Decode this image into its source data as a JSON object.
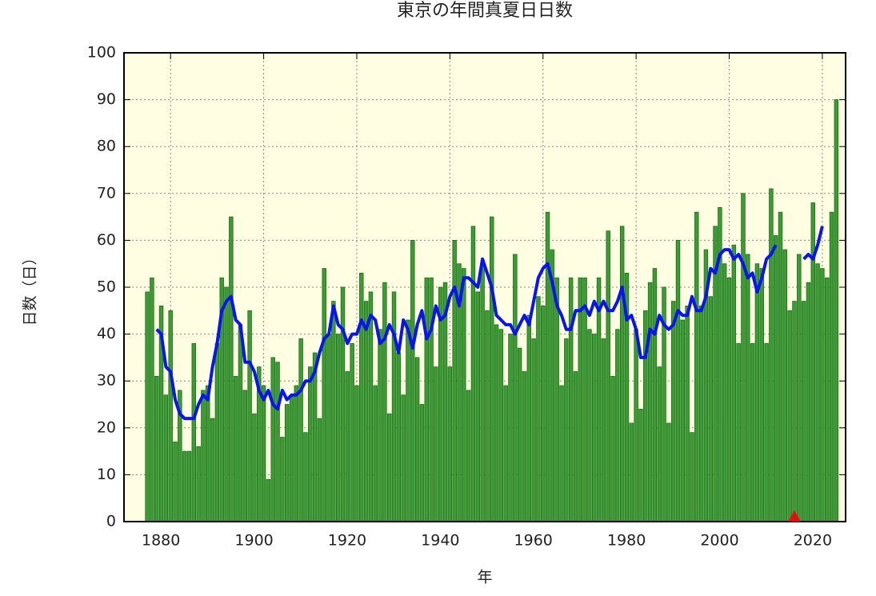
{
  "chart_data": {
    "type": "bar",
    "title": "東京の年間真夏日日数",
    "xlabel": "年",
    "ylabel": "日数（日）",
    "x": [
      1875,
      1876,
      1877,
      1878,
      1879,
      1880,
      1881,
      1882,
      1883,
      1884,
      1885,
      1886,
      1887,
      1888,
      1889,
      1890,
      1891,
      1892,
      1893,
      1894,
      1895,
      1896,
      1897,
      1898,
      1899,
      1900,
      1901,
      1902,
      1903,
      1904,
      1905,
      1906,
      1907,
      1908,
      1909,
      1910,
      1911,
      1912,
      1913,
      1914,
      1915,
      1916,
      1917,
      1918,
      1919,
      1920,
      1921,
      1922,
      1923,
      1924,
      1925,
      1926,
      1927,
      1928,
      1929,
      1930,
      1931,
      1932,
      1933,
      1934,
      1935,
      1936,
      1937,
      1938,
      1939,
      1940,
      1941,
      1942,
      1943,
      1944,
      1945,
      1946,
      1947,
      1948,
      1949,
      1950,
      1951,
      1952,
      1953,
      1954,
      1955,
      1956,
      1957,
      1958,
      1959,
      1960,
      1961,
      1962,
      1963,
      1964,
      1965,
      1966,
      1967,
      1968,
      1969,
      1970,
      1971,
      1972,
      1973,
      1974,
      1975,
      1976,
      1977,
      1978,
      1979,
      1980,
      1981,
      1982,
      1983,
      1984,
      1985,
      1986,
      1987,
      1988,
      1989,
      1990,
      1991,
      1992,
      1993,
      1994,
      1995,
      1996,
      1997,
      1998,
      1999,
      2000,
      2001,
      2002,
      2003,
      2004,
      2005,
      2006,
      2007,
      2008,
      2009,
      2010,
      2011,
      2012,
      2013,
      2014,
      2015,
      2016,
      2017,
      2018,
      2019,
      2020,
      2021,
      2022,
      2023
    ],
    "series": [
      {
        "color": "#3c9c34",
        "values": [
          49,
          52,
          31,
          46,
          27,
          45,
          17,
          28,
          15,
          15,
          38,
          16,
          28,
          29,
          22,
          38,
          52,
          50,
          65,
          31,
          42,
          28,
          45,
          23,
          33,
          29,
          9,
          35,
          34,
          18,
          25,
          27,
          29,
          39,
          19,
          33,
          36,
          22,
          54,
          40,
          47,
          40,
          50,
          32,
          38,
          29,
          53,
          47,
          49,
          29,
          41,
          51,
          23,
          49,
          36,
          27,
          43,
          60,
          35,
          25,
          52,
          52,
          33,
          50,
          51,
          33,
          60,
          55,
          54,
          28,
          63,
          49,
          55,
          45,
          65,
          42,
          41,
          29,
          40,
          57,
          37,
          32,
          44,
          39,
          48,
          46,
          66,
          58,
          52,
          29,
          39,
          52,
          32,
          52,
          52,
          41,
          40,
          52,
          39,
          62,
          31,
          41,
          63,
          53,
          21,
          41,
          24,
          45,
          51,
          54,
          33,
          50,
          21,
          47,
          60,
          43,
          46,
          19,
          66,
          46,
          58,
          48,
          63,
          67,
          55,
          52,
          59,
          38,
          70,
          57,
          38,
          55,
          54,
          38,
          71,
          61,
          66,
          58,
          45,
          47,
          57,
          47,
          51,
          68,
          55,
          54,
          52,
          66,
          90
        ]
      },
      {
        "type": "line",
        "color": "#0a14f0",
        "values": [
          null,
          null,
          41,
          40,
          33,
          32,
          26,
          23,
          22,
          22,
          22,
          25,
          27,
          26,
          33,
          38,
          45,
          47,
          48,
          43,
          42,
          34,
          34,
          32,
          28,
          26,
          28,
          25,
          24,
          28,
          26,
          27,
          27,
          28,
          30,
          30,
          32,
          36,
          39,
          40,
          46,
          42,
          41,
          38,
          40,
          40,
          43,
          41,
          44,
          43,
          38,
          39,
          42,
          40,
          36,
          43,
          41,
          37,
          42,
          45,
          39,
          41,
          46,
          43,
          44,
          48,
          50,
          46,
          52,
          52,
          51,
          50,
          56,
          53,
          50,
          44,
          43,
          42,
          42,
          40,
          42,
          44,
          42,
          47,
          52,
          54,
          55,
          51,
          46,
          44,
          41,
          41,
          45,
          45,
          46,
          44,
          47,
          45,
          47,
          45,
          45,
          47,
          50,
          43,
          44,
          41,
          35,
          35,
          41,
          40,
          44,
          42,
          41,
          42,
          45,
          44,
          44,
          48,
          45,
          45,
          48,
          54,
          53,
          57,
          58,
          58,
          56,
          57,
          55,
          52,
          53,
          49,
          52,
          56,
          57,
          59,
          null,
          null,
          null,
          null,
          null,
          56,
          57,
          56,
          59,
          63,
          null,
          null,
          null
        ]
      }
    ],
    "marker": {
      "x": 2014,
      "value": 0,
      "color": "#e01010"
    },
    "xlim": [
      1870,
      2025
    ],
    "ylim": [
      0,
      100
    ],
    "xticks": [
      1880,
      1900,
      1920,
      1940,
      1960,
      1980,
      2000,
      2020
    ],
    "yticks": [
      0,
      10,
      20,
      30,
      40,
      50,
      60,
      70,
      80,
      90,
      100
    ],
    "grid": true,
    "background": "#fffde2"
  }
}
